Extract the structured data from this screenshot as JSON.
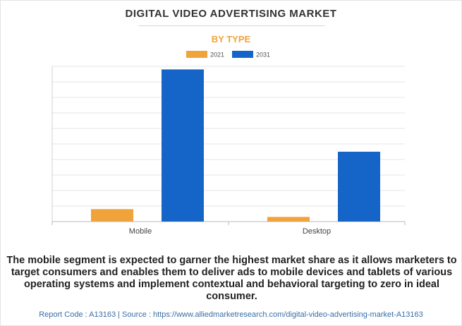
{
  "header": {
    "title": "DIGITAL VIDEO ADVERTISING MARKET",
    "subtitle": "BY TYPE"
  },
  "colors": {
    "series_2021": "#f0a33a",
    "series_2031": "#1565c8",
    "subtitle": "#f0a33a",
    "footer_link": "#3a6ea5",
    "grid": "#e6e6e6"
  },
  "chart_data": {
    "type": "bar",
    "categories": [
      "Mobile",
      "Desktop"
    ],
    "series": [
      {
        "name": "2021",
        "values": [
          8,
          3
        ]
      },
      {
        "name": "2031",
        "values": [
          98,
          45
        ]
      }
    ],
    "ylim": [
      0,
      100
    ],
    "y_tick_labels_visible": false,
    "grid": true,
    "legend_position": "top-center"
  },
  "description": "The mobile segment is expected to garner the highest market share as it allows marketers to target consumers and enables them to deliver ads to mobile devices and tablets of various operating systems and implement contextual and behavioral targeting to zero in ideal consumer.",
  "footer": {
    "text": "Report Code : A13163  |  Source : https://www.alliedmarketresearch.com/digital-video-advertising-market-A13163"
  }
}
